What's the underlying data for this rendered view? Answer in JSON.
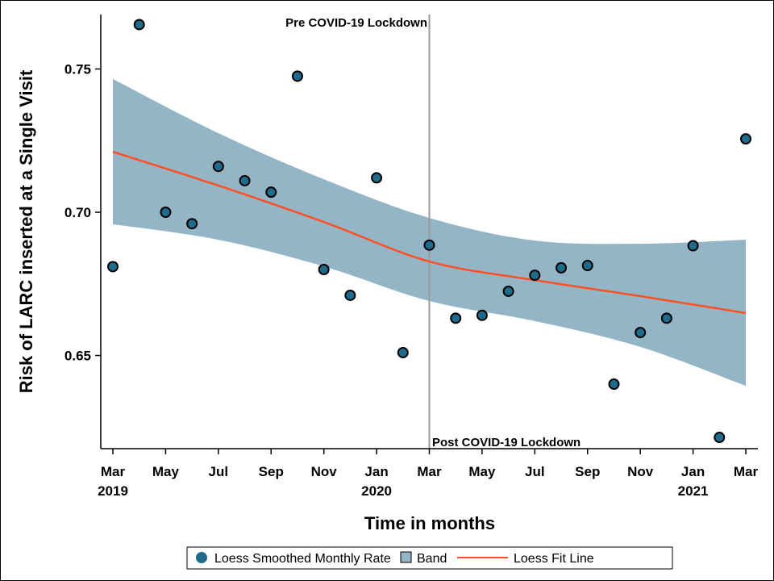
{
  "chart_data": {
    "type": "scatter",
    "xlabel": "Time in months",
    "ylabel": "Risk of LARC inserted at a Single Visit",
    "ylim": [
      0.6176,
      0.7689
    ],
    "xlim": [
      "2019-03",
      "2021-03"
    ],
    "grid": false,
    "legend_placement": "bottom",
    "y_ticks": [
      "0.65",
      "0.70",
      "0.75"
    ],
    "x_ticks": [
      {
        "month": "2019-03",
        "label": "Mar",
        "sub": "2019"
      },
      {
        "month": "2019-05",
        "label": "May",
        "sub": ""
      },
      {
        "month": "2019-07",
        "label": "Jul",
        "sub": ""
      },
      {
        "month": "2019-09",
        "label": "Sep",
        "sub": ""
      },
      {
        "month": "2019-11",
        "label": "Nov",
        "sub": ""
      },
      {
        "month": "2020-01",
        "label": "Jan",
        "sub": "2020"
      },
      {
        "month": "2020-03",
        "label": "Mar",
        "sub": ""
      },
      {
        "month": "2020-05",
        "label": "May",
        "sub": ""
      },
      {
        "month": "2020-07",
        "label": "Jul",
        "sub": ""
      },
      {
        "month": "2020-09",
        "label": "Sep",
        "sub": ""
      },
      {
        "month": "2020-11",
        "label": "Nov",
        "sub": ""
      },
      {
        "month": "2021-01",
        "label": "Jan",
        "sub": "2021"
      },
      {
        "month": "2021-03",
        "label": "Mar",
        "sub": ""
      }
    ],
    "vline": {
      "month": "2020-03",
      "pre_label": "Pre COVID-19 Lockdown",
      "post_label": "Post COVID-19 Lockdown",
      "color": "#999999"
    },
    "months": [
      "2019-03",
      "2019-04",
      "2019-05",
      "2019-06",
      "2019-07",
      "2019-08",
      "2019-09",
      "2019-10",
      "2019-11",
      "2019-12",
      "2020-01",
      "2020-02",
      "2020-03",
      "2020-04",
      "2020-05",
      "2020-06",
      "2020-07",
      "2020-08",
      "2020-09",
      "2020-10",
      "2020-11",
      "2020-12",
      "2021-01",
      "2021-02",
      "2021-03"
    ],
    "series": [
      {
        "name": "Loess Smoothed Monthly Rate",
        "kind": "points",
        "color": "#1f6b8c",
        "values": [
          0.681,
          0.7655,
          0.7,
          0.696,
          0.716,
          0.711,
          0.707,
          0.7475,
          0.68,
          0.671,
          0.712,
          0.651,
          0.6885,
          0.663,
          0.664,
          0.6724,
          0.678,
          0.6806,
          0.6814,
          0.64,
          0.658,
          0.663,
          0.6883,
          0.6214,
          0.7256
        ]
      },
      {
        "name": "Band",
        "kind": "band",
        "color": "#93b5c6",
        "upper_months": [
          "2019-03",
          "2019-07",
          "2019-11",
          "2020-03",
          "2020-07",
          "2020-11",
          "2021-03"
        ],
        "upper": [
          0.7465,
          0.7276,
          0.7115,
          0.698,
          0.6901,
          0.689,
          0.6904
        ],
        "lower": [
          0.6958,
          0.6904,
          0.6811,
          0.669,
          0.662,
          0.653,
          0.6394
        ]
      },
      {
        "name": "Loess Fit Line",
        "kind": "line",
        "color": "#ff4f24",
        "line_months": [
          "2019-03",
          "2019-07",
          "2019-11",
          "2020-03",
          "2020-07",
          "2020-11",
          "2021-03"
        ],
        "values": [
          0.7211,
          0.7093,
          0.6966,
          0.6828,
          0.6763,
          0.6707,
          0.6648
        ]
      }
    ]
  }
}
